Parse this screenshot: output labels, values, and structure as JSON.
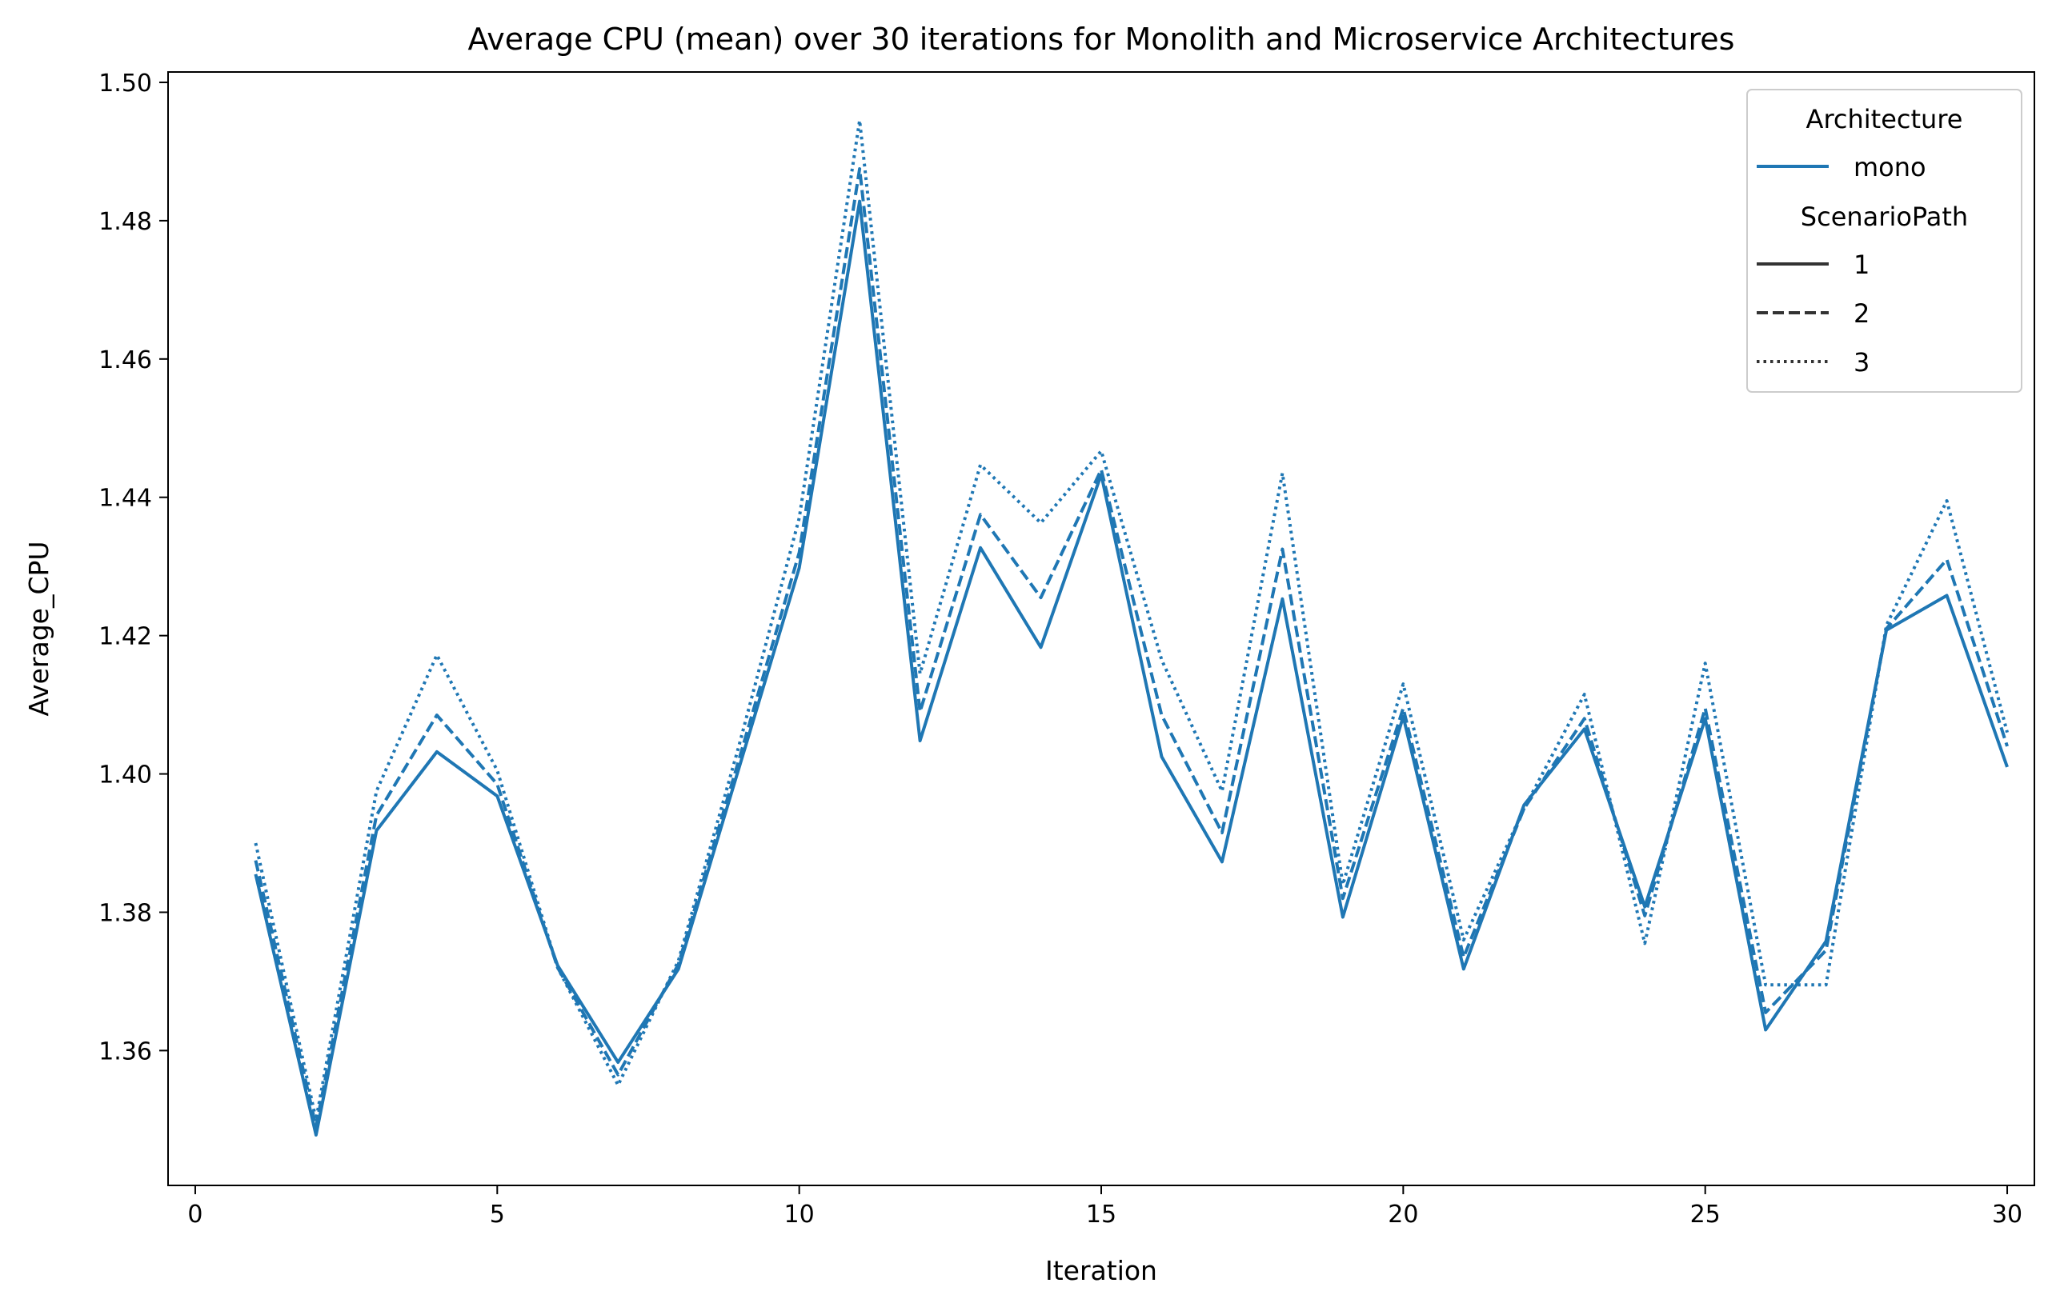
{
  "chart_data": {
    "type": "line",
    "title": "Average CPU (mean) over 30 iterations for Monolith and Microservice Architectures",
    "xlabel": "Iteration",
    "ylabel": "Average_CPU",
    "xlim": [
      -0.45,
      30.45
    ],
    "ylim": [
      1.3405,
      1.5015
    ],
    "xticks": [
      0,
      5,
      10,
      15,
      20,
      25,
      30
    ],
    "yticks": [
      1.36,
      1.38,
      1.4,
      1.42,
      1.44,
      1.46,
      1.48,
      1.5
    ],
    "ytick_labels": [
      "1.36",
      "1.38",
      "1.40",
      "1.42",
      "1.44",
      "1.46",
      "1.48",
      "1.50"
    ],
    "grid": false,
    "legend_position": "top-right",
    "color": "#1f77b4",
    "x": [
      1,
      2,
      3,
      4,
      5,
      6,
      7,
      8,
      9,
      10,
      11,
      12,
      13,
      14,
      15,
      16,
      17,
      18,
      19,
      20,
      21,
      22,
      23,
      24,
      25,
      26,
      27,
      28,
      29,
      30
    ],
    "series": [
      {
        "name": "1",
        "style": "solid",
        "values": [
          1.3855,
          1.3478,
          1.3918,
          1.4032,
          1.3968,
          1.3723,
          1.3583,
          1.3718,
          1.4008,
          1.4298,
          1.4828,
          1.4048,
          1.4327,
          1.4183,
          1.4433,
          1.4025,
          1.3873,
          1.4253,
          1.3793,
          1.4083,
          1.3718,
          1.3955,
          1.4065,
          1.3808,
          1.408,
          1.363,
          1.3758,
          1.4208,
          1.4258,
          1.401
        ]
      },
      {
        "name": "2",
        "style": "dashed",
        "values": [
          1.3875,
          1.349,
          1.394,
          1.4085,
          1.3985,
          1.372,
          1.3565,
          1.3725,
          1.402,
          1.432,
          1.4875,
          1.409,
          1.4375,
          1.4255,
          1.444,
          1.4085,
          1.3915,
          1.4325,
          1.382,
          1.4095,
          1.3735,
          1.395,
          1.408,
          1.3795,
          1.4095,
          1.3655,
          1.3745,
          1.421,
          1.431,
          1.404
        ]
      },
      {
        "name": "3",
        "style": "dotted",
        "values": [
          1.39,
          1.35,
          1.3975,
          1.4172,
          1.4005,
          1.372,
          1.355,
          1.373,
          1.404,
          1.437,
          1.4945,
          1.4145,
          1.4447,
          1.4363,
          1.4467,
          1.4165,
          1.3975,
          1.4435,
          1.384,
          1.413,
          1.376,
          1.395,
          1.4115,
          1.3755,
          1.416,
          1.3695,
          1.3695,
          1.4215,
          1.4395,
          1.406
        ]
      }
    ],
    "legend": {
      "hue_title": "Architecture",
      "hue_label": "mono",
      "style_title": "ScenarioPath",
      "style_labels": [
        "1",
        "2",
        "3"
      ]
    }
  }
}
